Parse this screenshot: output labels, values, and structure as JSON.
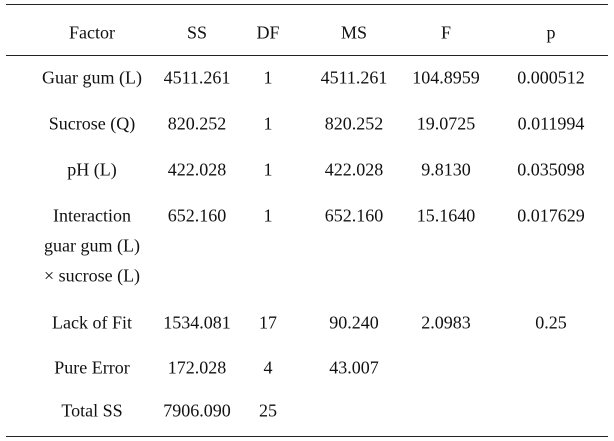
{
  "table": {
    "header": [
      "Factor",
      "SS",
      "DF",
      "MS",
      "F",
      "p"
    ],
    "rows": [
      {
        "factor": [
          "Guar gum (L)"
        ],
        "cells": [
          "4511.261",
          "1",
          "4511.261",
          "104.8959",
          "0.000512"
        ]
      },
      {
        "factor": [
          "Sucrose (Q)"
        ],
        "cells": [
          "820.252",
          "1",
          "820.252",
          "19.0725",
          "0.011994"
        ]
      },
      {
        "factor": [
          "pH (L)"
        ],
        "cells": [
          "422.028",
          "1",
          "422.028",
          "9.8130",
          "0.035098"
        ]
      },
      {
        "factor": [
          "Interaction",
          "guar gum (L)",
          "× sucrose (L)"
        ],
        "cells": [
          "652.160",
          "1",
          "652.160",
          "15.1640",
          "0.017629"
        ]
      },
      {
        "factor": [
          "Lack of Fit"
        ],
        "cells": [
          "1534.081",
          "17",
          "90.240",
          "2.0983",
          "0.25"
        ]
      },
      {
        "factor": [
          "Pure Error"
        ],
        "cells": [
          "172.028",
          "4",
          "43.007"
        ]
      },
      {
        "factor": [
          "Total SS"
        ],
        "cells": [
          "7906.090",
          "25"
        ]
      }
    ]
  }
}
